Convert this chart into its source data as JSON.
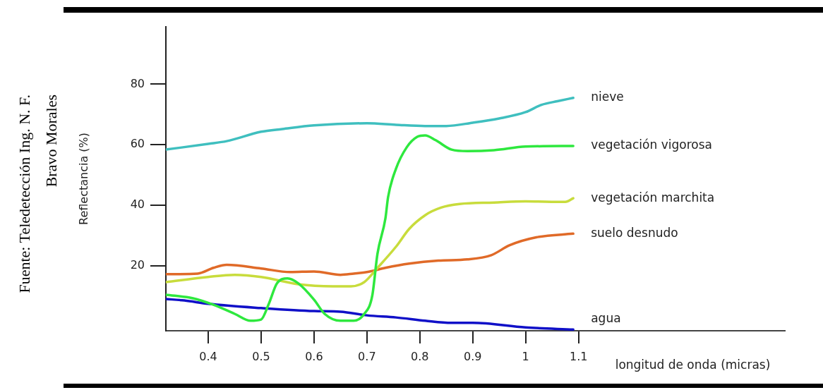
{
  "chart_data": {
    "type": "line",
    "ylabel": "Reflectancia (%)",
    "xlabel": "longitud de onda (micras)",
    "annotations": [
      "Fuente: Teledetección Ing. N. F. Bravo Morales"
    ],
    "xlim": [
      0.32,
      1.49
    ],
    "xticks": [
      0.4,
      0.5,
      0.6,
      0.7,
      0.8,
      0.9,
      1,
      1.1
    ],
    "ylim": [
      -1.5,
      99
    ],
    "yticks": [
      20,
      40,
      60,
      80
    ],
    "grid": false,
    "legend": false,
    "marker": "none",
    "line_style": "solid",
    "series": [
      {
        "name": "nieve",
        "color": "#3fbfbf",
        "x": [
          0.32,
          0.4,
          0.435,
          0.5,
          0.54,
          0.6,
          0.7,
          0.755,
          0.81,
          0.85,
          0.9,
          0.95,
          1.0,
          1.03,
          1.06,
          1.09
        ],
        "values": [
          58.4,
          60.3,
          61.2,
          64.3,
          65.2,
          66.4,
          67.1,
          66.6,
          66.2,
          66.2,
          67.3,
          68.7,
          70.8,
          73.2,
          74.4,
          75.5
        ]
      },
      {
        "name": "vegetación vigorosa",
        "color": "#2ee83e",
        "x": [
          0.32,
          0.37,
          0.41,
          0.45,
          0.48,
          0.5,
          0.515,
          0.53,
          0.55,
          0.57,
          0.6,
          0.62,
          0.65,
          0.675,
          0.695,
          0.71,
          0.72,
          0.735,
          0.74,
          0.755,
          0.775,
          0.795,
          0.81,
          0.83,
          0.86,
          0.89,
          0.94,
          1.0,
          1.09
        ],
        "values": [
          10.4,
          9.3,
          7.1,
          4.1,
          1.8,
          2.2,
          7.6,
          14.2,
          15.8,
          14.2,
          8.8,
          4.1,
          1.8,
          1.8,
          4.1,
          10,
          24,
          35.7,
          42.7,
          52.1,
          59.1,
          62.6,
          63.1,
          61.5,
          58.4,
          57.9,
          58.2,
          59.4,
          59.6
        ]
      },
      {
        "name": "vegetación marchita",
        "color": "#c8dc3c",
        "x": [
          0.32,
          0.4,
          0.45,
          0.5,
          0.57,
          0.635,
          0.67,
          0.695,
          0.72,
          0.755,
          0.78,
          0.81,
          0.84,
          0.875,
          0.94,
          1.0,
          1.075,
          1.09
        ],
        "values": [
          14.6,
          16.3,
          17,
          16.3,
          13.9,
          13.2,
          13.2,
          14.6,
          19.3,
          26.3,
          32.2,
          36.7,
          39.2,
          40.4,
          40.9,
          41.3,
          41.1,
          42.3
        ]
      },
      {
        "name": "suelo desnudo",
        "color": "#e06a28",
        "x": [
          0.32,
          0.38,
          0.41,
          0.435,
          0.5,
          0.555,
          0.6,
          0.65,
          0.675,
          0.7,
          0.735,
          0.78,
          0.835,
          0.89,
          0.935,
          0.97,
          1.02,
          1.09
        ],
        "values": [
          17.2,
          17.4,
          19.3,
          20.3,
          19.1,
          17.9,
          18.1,
          17,
          17.4,
          17.9,
          19.3,
          20.7,
          21.7,
          22.1,
          23.5,
          26.8,
          29.4,
          30.6
        ]
      },
      {
        "name": "agua",
        "color": "#1010c8",
        "x": [
          0.32,
          0.355,
          0.4,
          0.5,
          0.6,
          0.65,
          0.7,
          0.755,
          0.81,
          0.86,
          0.9,
          1.0,
          1.09
        ],
        "values": [
          9,
          8.5,
          7.4,
          6,
          5,
          4.8,
          3.6,
          2.9,
          1.8,
          1.1,
          1.1,
          -0.4,
          -1.1
        ]
      }
    ]
  }
}
